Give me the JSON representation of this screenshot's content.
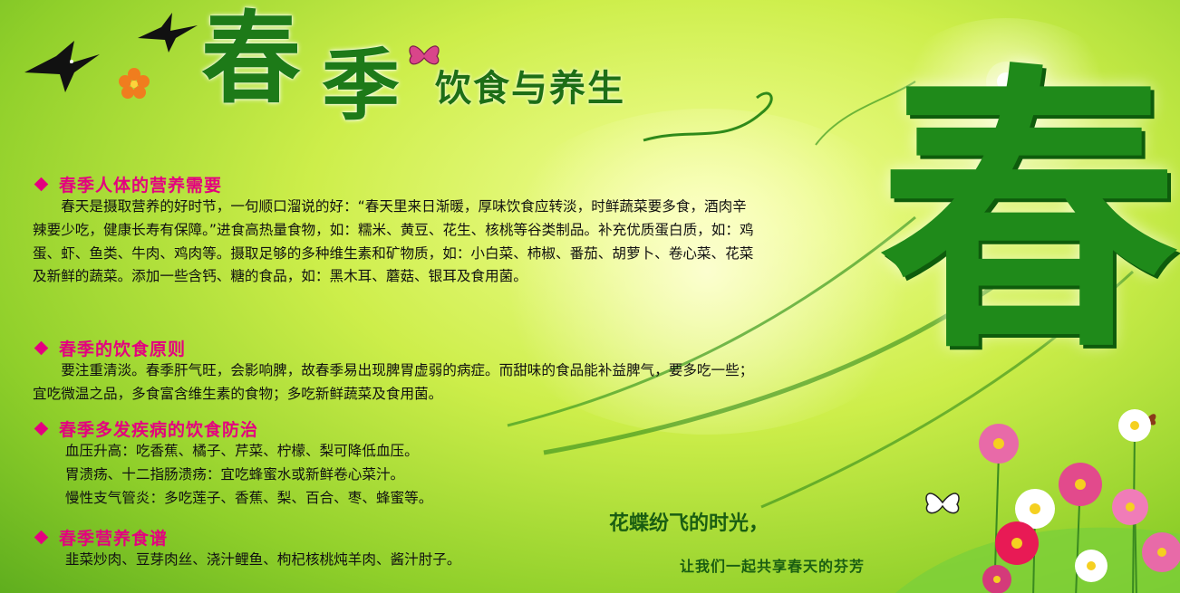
{
  "poster": {
    "title_part1": "春",
    "title_part2": "季",
    "subtitle": "饮食与养生",
    "big_character": "春",
    "sections": [
      {
        "heading": "春季人体的营养需要",
        "paragraph": "春天是摄取营养的好时节，一句顺口溜说的好：“春天里来日渐暖，厚味饮食应转淡，时鲜蔬菜要多食，酒肉辛辣要少吃，健康长寿有保障。”进食高热量食物，如：糯米、黄豆、花生、核桃等谷类制品。补充优质蛋白质，如：鸡蛋、虾、鱼类、牛肉、鸡肉等。摄取足够的多种维生素和矿物质，如：小白菜、柿椒、番茄、胡萝卜、卷心菜、花菜及新鲜的蔬菜。添加一些含钙、糖的食品，如：黑木耳、蘑菇、银耳及食用菌。"
      },
      {
        "heading": "春季的饮食原则",
        "paragraph": "要注重清淡。春季肝气旺，会影响脾，故春季易出现脾胃虚弱的病症。而甜味的食品能补益脾气，要多吃一些；宜吃微温之品，多食富含维生素的食物；多吃新鲜蔬菜及食用菌。"
      },
      {
        "heading": "春季多发疾病的饮食防治",
        "lines": [
          "血压升高：吃香蕉、橘子、芹菜、柠檬、梨可降低血压。",
          "胃溃疡、十二指肠溃疡：宜吃蜂蜜水或新鲜卷心菜汁。",
          "慢性支气管炎：多吃莲子、香蕉、梨、百合、枣、蜂蜜等。"
        ]
      },
      {
        "heading": "春季营养食谱",
        "lines": [
          "韭菜炒肉、豆芽肉丝、浇汁鲤鱼、枸杞核桃炖羊肉、酱汁肘子。"
        ]
      }
    ],
    "slogan_line1": "花蝶纷飞的时光，",
    "slogan_line2": "让我们一起共享春天的芬芳"
  },
  "colors": {
    "heading_accent": "#e4007f",
    "title_green": "#1d7a18",
    "background_light": "#f4ff9a",
    "background_dark": "#5fae1e"
  },
  "icons": [
    "swallow-icon",
    "butterfly-icon",
    "flower-icon",
    "diamond-bullet-icon"
  ]
}
